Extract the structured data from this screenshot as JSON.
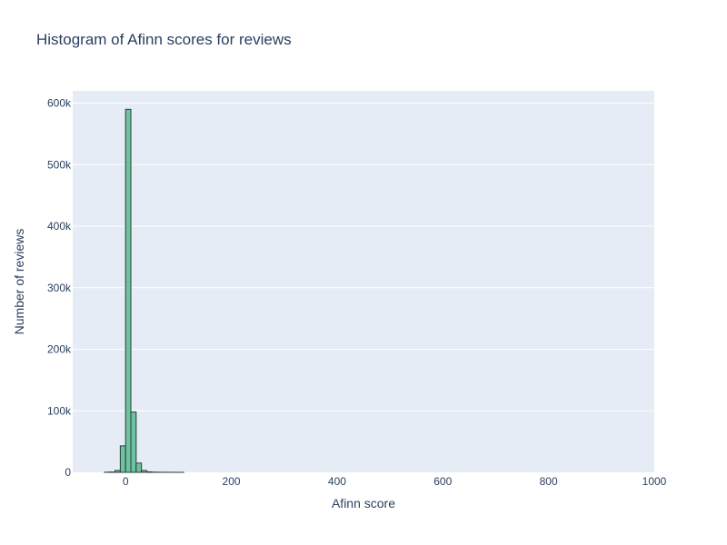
{
  "chart_data": {
    "type": "bar",
    "title": "Histogram of Afinn scores for reviews",
    "xlabel": "Afinn score",
    "ylabel": "Number of reviews",
    "xlim": [
      -100,
      1000
    ],
    "ylim": [
      0,
      620000
    ],
    "xticks": [
      0,
      200,
      400,
      600,
      800,
      1000
    ],
    "xtick_labels": [
      "0",
      "200",
      "400",
      "600",
      "800",
      "1000"
    ],
    "yticks": [
      0,
      100000,
      200000,
      300000,
      400000,
      500000,
      600000
    ],
    "ytick_labels": [
      "0",
      "100k",
      "200k",
      "300k",
      "400k",
      "500k",
      "600k"
    ],
    "grid": true,
    "bin_width": 10,
    "bins": [
      {
        "x0": -40,
        "value": 200
      },
      {
        "x0": -30,
        "value": 500
      },
      {
        "x0": -20,
        "value": 3000
      },
      {
        "x0": -10,
        "value": 43000
      },
      {
        "x0": 0,
        "value": 590000
      },
      {
        "x0": 10,
        "value": 98000
      },
      {
        "x0": 20,
        "value": 15000
      },
      {
        "x0": 30,
        "value": 3000
      },
      {
        "x0": 40,
        "value": 800
      },
      {
        "x0": 50,
        "value": 300
      },
      {
        "x0": 60,
        "value": 150
      },
      {
        "x0": 70,
        "value": 80
      },
      {
        "x0": 80,
        "value": 40
      },
      {
        "x0": 90,
        "value": 20
      },
      {
        "x0": 100,
        "value": 10
      }
    ]
  },
  "colors": {
    "plot_bg": "#e5ecf6",
    "bar_fill": "#6cc3a0",
    "bar_stroke": "#2f3a36",
    "grid": "#ffffff",
    "text": "#2a3f5f"
  }
}
